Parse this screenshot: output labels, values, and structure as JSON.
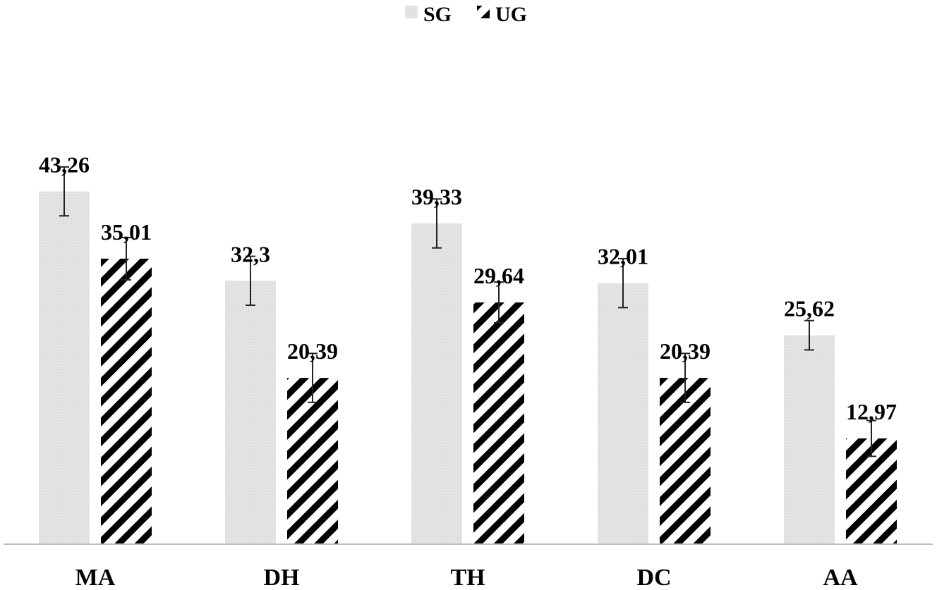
{
  "chart_data": {
    "type": "bar",
    "categories": [
      "MA",
      "DH",
      "TH",
      "DC",
      "AA"
    ],
    "series": [
      {
        "name": "SG",
        "values": [
          43.26,
          32.3,
          39.33,
          32.01,
          25.62
        ],
        "labels": [
          "43,26",
          "32,3",
          "39,33",
          "32,01",
          "25,62"
        ],
        "error": [
          3.0,
          3.0,
          3.0,
          3.0,
          1.8
        ],
        "color": "#e3e3e3",
        "pattern": "dotted"
      },
      {
        "name": "UG",
        "values": [
          35.01,
          20.39,
          29.64,
          20.39,
          12.97
        ],
        "labels": [
          "35,01",
          "20,39",
          "29,64",
          "20,39",
          "12,97"
        ],
        "error": [
          2.6,
          3.0,
          2.5,
          3.0,
          2.2
        ],
        "color": "#000000",
        "pattern": "diagonal-stripes"
      }
    ],
    "title": "",
    "xlabel": "",
    "ylabel": "",
    "ylim": [
      0,
      65
    ],
    "grid": false,
    "legend": "top-center"
  }
}
